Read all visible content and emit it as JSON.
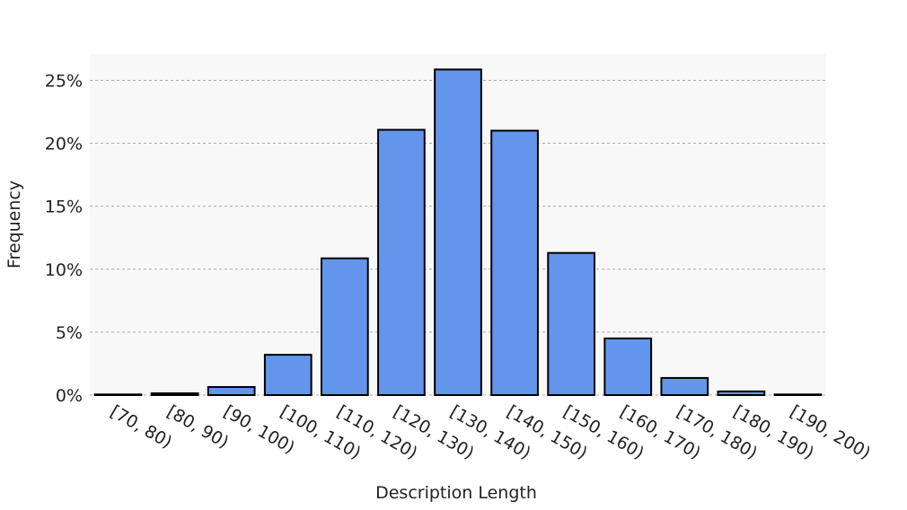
{
  "chart_data": {
    "type": "bar",
    "xlabel": "Description Length",
    "ylabel": "Frequency",
    "categories": [
      "[70, 80)",
      "[80, 90)",
      "[90, 100)",
      "[100, 110)",
      "[110, 120)",
      "[120, 130)",
      "[130, 140)",
      "[140, 150)",
      "[150, 160)",
      "[160, 170)",
      "[170, 180)",
      "[180, 190)",
      "[190, 200)"
    ],
    "values": [
      0.05,
      0.14,
      0.64,
      3.2,
      10.86,
      21.07,
      25.86,
      21.0,
      11.29,
      4.5,
      1.36,
      0.29,
      0.05
    ],
    "color": "#6495ed",
    "ylim": [
      0,
      27.1
    ],
    "yticks": [
      {
        "value": 0,
        "label": "0%"
      },
      {
        "value": 5,
        "label": "5%"
      },
      {
        "value": 10,
        "label": "10%"
      },
      {
        "value": 15,
        "label": "15%"
      },
      {
        "value": 20,
        "label": "20%"
      },
      {
        "value": 25,
        "label": "25%"
      }
    ],
    "grid": true
  }
}
